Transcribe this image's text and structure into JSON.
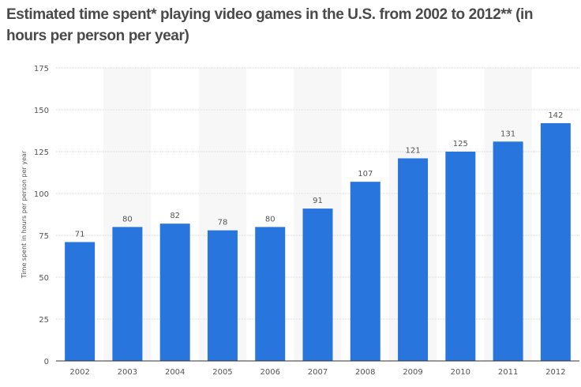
{
  "chart_data": {
    "type": "bar",
    "title": "Estimated time spent* playing video games in the U.S. from 2002 to 2012** (in hours per person per year)",
    "xlabel": "",
    "ylabel": "Time spent in hours per person per year",
    "ylim": [
      0,
      175
    ],
    "yticks": [
      0,
      25,
      50,
      75,
      100,
      125,
      150,
      175
    ],
    "categories": [
      "2002",
      "2003",
      "2004",
      "2005",
      "2006",
      "2007",
      "2008",
      "2009",
      "2010",
      "2011",
      "2012"
    ],
    "values": [
      71,
      80,
      82,
      78,
      80,
      91,
      107,
      121,
      125,
      131,
      142
    ],
    "grid": true,
    "bar_color": "#2876dd",
    "data_labels": true
  }
}
